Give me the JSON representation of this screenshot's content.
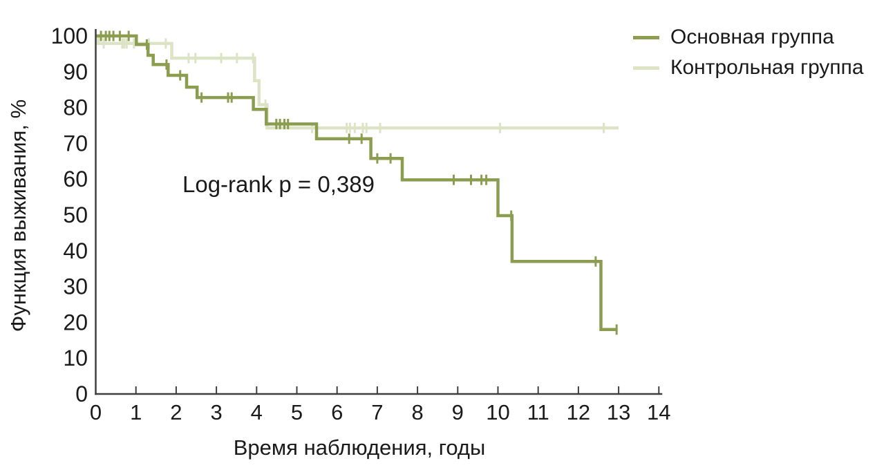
{
  "figure": {
    "background": "#FFFFFF",
    "text_color": "#1A1A1A",
    "axis_color": "#3F3F3F"
  },
  "chart_data": {
    "type": "line",
    "subtype": "kaplan-meier-step-function",
    "title": "",
    "xlabel": "Время наблюдения, годы",
    "ylabel": "Функция выживания, %",
    "annotation": "Log-rank p = 0,389",
    "xlim": [
      0,
      14
    ],
    "ylim": [
      0,
      100
    ],
    "x_ticks": [
      0,
      1,
      2,
      3,
      4,
      5,
      6,
      7,
      8,
      9,
      10,
      11,
      12,
      13,
      14
    ],
    "y_ticks": [
      0,
      10,
      20,
      30,
      40,
      50,
      60,
      70,
      80,
      90,
      100
    ],
    "grid": false,
    "legend_position": "top-right",
    "series": [
      {
        "name": "Основная группа",
        "color": "#8B9E50",
        "points": [
          [
            0,
            100
          ],
          [
            1.01,
            100
          ],
          [
            1.01,
            97.6
          ],
          [
            1.3,
            97.6
          ],
          [
            1.3,
            94.6
          ],
          [
            1.43,
            94.6
          ],
          [
            1.43,
            92
          ],
          [
            1.8,
            92
          ],
          [
            1.8,
            89
          ],
          [
            2.26,
            89
          ],
          [
            2.26,
            85.7
          ],
          [
            2.52,
            85.7
          ],
          [
            2.52,
            82.8
          ],
          [
            3.92,
            82.8
          ],
          [
            3.92,
            79.5
          ],
          [
            4.24,
            79.5
          ],
          [
            4.24,
            75.4
          ],
          [
            5.49,
            75.4
          ],
          [
            5.49,
            71.3
          ],
          [
            6.84,
            71.3
          ],
          [
            6.84,
            65.8
          ],
          [
            7.62,
            65.8
          ],
          [
            7.62,
            59.8
          ],
          [
            10.0,
            59.8
          ],
          [
            10.0,
            49.8
          ],
          [
            10.35,
            49.8
          ],
          [
            10.35,
            37
          ],
          [
            12.56,
            37
          ],
          [
            12.56,
            18
          ],
          [
            12.97,
            18
          ]
        ],
        "censor_marks": [
          [
            0.13,
            100
          ],
          [
            0.25,
            100
          ],
          [
            0.34,
            100
          ],
          [
            0.44,
            100
          ],
          [
            0.6,
            100
          ],
          [
            0.82,
            100
          ],
          [
            1.27,
            97.6
          ],
          [
            1.76,
            92
          ],
          [
            2.1,
            89
          ],
          [
            2.63,
            82.8
          ],
          [
            3.29,
            82.8
          ],
          [
            3.38,
            82.8
          ],
          [
            4.49,
            75.4
          ],
          [
            4.58,
            75.4
          ],
          [
            4.69,
            75.4
          ],
          [
            4.78,
            75.4
          ],
          [
            6.3,
            71.3
          ],
          [
            6.61,
            71.3
          ],
          [
            7.0,
            65.8
          ],
          [
            7.33,
            65.8
          ],
          [
            8.9,
            59.8
          ],
          [
            9.33,
            59.8
          ],
          [
            9.59,
            59.8
          ],
          [
            9.71,
            59.8
          ],
          [
            10.33,
            49.8
          ],
          [
            12.43,
            37
          ],
          [
            12.95,
            18
          ]
        ]
      },
      {
        "name": "Контрольная группа",
        "color": "#DDE3C5",
        "points": [
          [
            0,
            100
          ],
          [
            0.06,
            100
          ],
          [
            0.06,
            97.9
          ],
          [
            1.89,
            97.9
          ],
          [
            1.89,
            93.8
          ],
          [
            3.95,
            93.8
          ],
          [
            3.95,
            87.5
          ],
          [
            4.06,
            87.5
          ],
          [
            4.06,
            80.8
          ],
          [
            4.26,
            80.8
          ],
          [
            4.26,
            74.3
          ],
          [
            13.0,
            74.3
          ]
        ],
        "censor_marks": [
          [
            0.2,
            97.9
          ],
          [
            0.66,
            97.9
          ],
          [
            0.71,
            97.9
          ],
          [
            0.77,
            97.9
          ],
          [
            0.95,
            97.9
          ],
          [
            1.32,
            97.9
          ],
          [
            1.74,
            97.9
          ],
          [
            2.31,
            93.8
          ],
          [
            2.48,
            93.8
          ],
          [
            3.12,
            93.8
          ],
          [
            3.51,
            93.8
          ],
          [
            3.91,
            93.8
          ],
          [
            4.22,
            80.8
          ],
          [
            5.38,
            74.3
          ],
          [
            6.24,
            74.3
          ],
          [
            6.32,
            74.3
          ],
          [
            6.44,
            74.3
          ],
          [
            6.64,
            74.3
          ],
          [
            6.73,
            74.3
          ],
          [
            7.07,
            74.3
          ],
          [
            10.05,
            74.3
          ],
          [
            12.63,
            74.3
          ]
        ]
      }
    ]
  },
  "legend": {
    "items": [
      {
        "label": "Основная группа"
      },
      {
        "label": "Контрольная группа"
      }
    ]
  }
}
